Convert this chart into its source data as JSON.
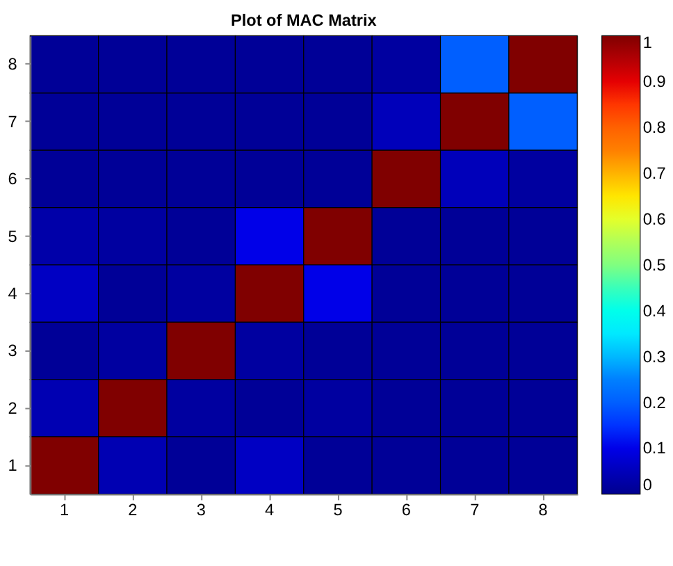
{
  "chart_data": {
    "type": "heatmap",
    "title": "Plot of MAC Matrix",
    "categories": [
      "1",
      "2",
      "3",
      "4",
      "5",
      "6",
      "7",
      "8"
    ],
    "y_categories": [
      "8",
      "7",
      "6",
      "5",
      "4",
      "3",
      "2",
      "1"
    ],
    "cells": [
      [
        0.01,
        0.01,
        0.01,
        0.01,
        0.01,
        0.02,
        0.2,
        1
      ],
      [
        0.01,
        0.01,
        0.01,
        0.01,
        0.01,
        0.05,
        1,
        0.2
      ],
      [
        0.01,
        0.01,
        0.01,
        0.01,
        0.01,
        1,
        0.05,
        0.02
      ],
      [
        0.03,
        0.02,
        0.01,
        0.1,
        1,
        0.01,
        0.01,
        0.01
      ],
      [
        0.06,
        0.01,
        0.02,
        1,
        0.1,
        0.01,
        0.01,
        0.01
      ],
      [
        0.01,
        0.02,
        1,
        0.02,
        0.01,
        0.01,
        0.01,
        0.01
      ],
      [
        0.04,
        1,
        0.02,
        0.01,
        0.02,
        0.01,
        0.01,
        0.01
      ],
      [
        1,
        0.04,
        0.01,
        0.06,
        0.01,
        0.01,
        0.01,
        0.01
      ]
    ],
    "clim": [
      0,
      1
    ],
    "cticks": [
      0,
      0.1,
      0.2,
      0.3,
      0.4,
      0.5,
      0.6,
      0.7,
      0.8,
      0.9,
      1
    ]
  }
}
